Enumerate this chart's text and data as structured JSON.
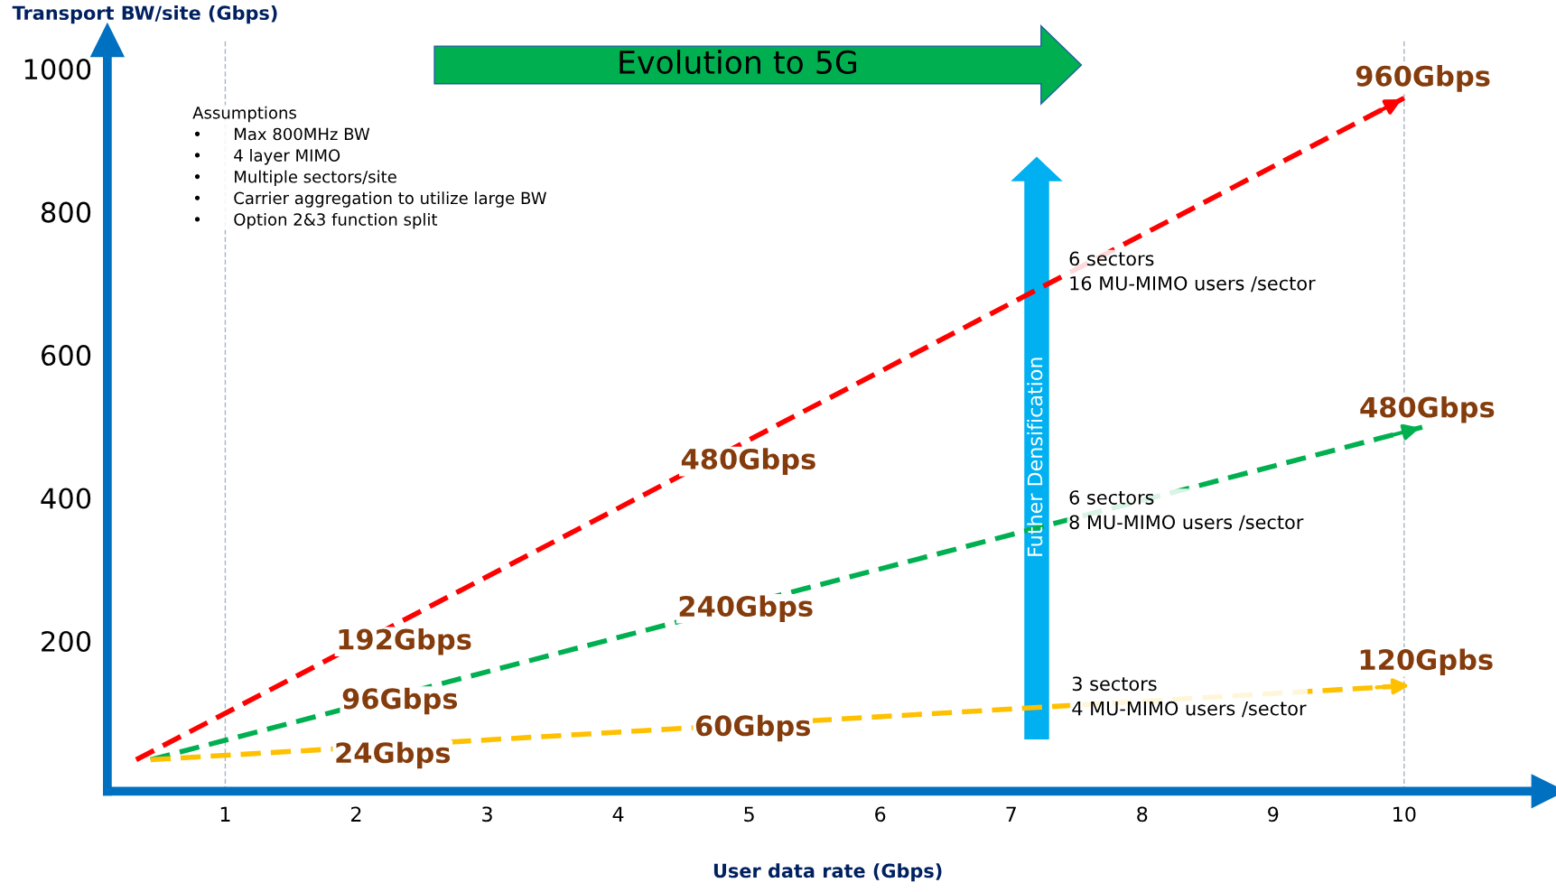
{
  "chart_data": {
    "type": "line",
    "xlabel": "User data rate (Gbps)",
    "ylabel": "Transport BW/site (Gbps)",
    "xlim": [
      0.1,
      11.1
    ],
    "ylim": [
      -10,
      1040
    ],
    "xticks": [
      1,
      2,
      3,
      4,
      5,
      6,
      7,
      8,
      9,
      10
    ],
    "yticks": [
      200,
      400,
      600,
      800,
      1000
    ],
    "grid": false,
    "line_style": "dashed",
    "marker": "none",
    "series": [
      {
        "color": "#ff0000",
        "x": [
          0.32,
          10.0
        ],
        "values": [
          34,
          959
        ]
      },
      {
        "color": "#00b050",
        "x": [
          0.43,
          10.14
        ],
        "values": [
          34,
          499
        ]
      },
      {
        "color": "#ffc000",
        "x": [
          0.43,
          10.06
        ],
        "values": [
          34,
          138
        ]
      }
    ],
    "ref_lines": [
      {
        "axis": "x",
        "value": 1,
        "color": "#a6b4c8",
        "line_style": "dashed"
      },
      {
        "axis": "x",
        "value": 10,
        "color": "#a6b4c8",
        "line_style": "dashed"
      }
    ],
    "annotations": [
      "Evolution to 5G",
      "Futher Densification",
      "Assumptions\n•      Max 800MHz BW\n•      4 layer MIMO\n•      Multiple sectors/site\n•      Carrier aggregation to utilize large BW\n•      Option 2&3 function split",
      "6 sectors\n16 MU-MIMO users /sector",
      "6 sectors\n8 MU-MIMO users /sector",
      "3 sectors\n4 MU-MIMO users /sector",
      "960Gbps",
      "480Gbps",
      "192Gbps",
      "480Gbps",
      "240Gbps",
      "96Gbps",
      "120Gpbs",
      "60Gbps",
      "24Gbps"
    ]
  }
}
